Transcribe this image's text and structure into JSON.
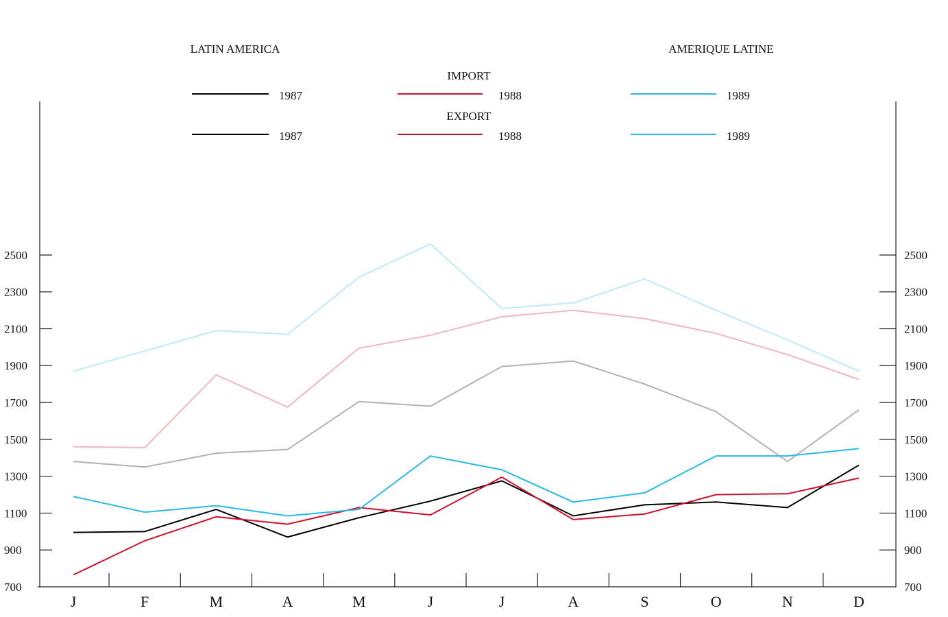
{
  "chart_data": {
    "type": "line",
    "title": "LATIN AMERICA",
    "title_right": "AMERIQUE LATINE",
    "categories": [
      "J",
      "F",
      "M",
      "A",
      "M",
      "J",
      "J",
      "A",
      "S",
      "O",
      "N",
      "D"
    ],
    "ylim": [
      700,
      2500
    ],
    "yticks": [
      700,
      900,
      1100,
      1300,
      1500,
      1700,
      1900,
      2100,
      2300,
      2500
    ],
    "y2lim": [
      700,
      2500
    ],
    "y2ticks": [
      700,
      900,
      1100,
      1300,
      1500,
      1700,
      1900,
      2100,
      2300,
      2500
    ],
    "series_groups": [
      {
        "name": "IMPORT",
        "opacity": 0.3,
        "series": [
          {
            "name": "1987",
            "color": "#000000",
            "values": [
              1380,
              1350,
              1425,
              1445,
              1705,
              1680,
              1895,
              1925,
              1800,
              1650,
              1380,
              1660
            ]
          },
          {
            "name": "1988",
            "color": "#d0102a",
            "values": [
              1460,
              1455,
              1850,
              1675,
              1995,
              2065,
              2165,
              2200,
              2155,
              2075,
              1960,
              1825
            ]
          },
          {
            "name": "1989",
            "color": "#2ab8e6",
            "values": [
              1870,
              1980,
              2090,
              2070,
              2380,
              2560,
              2210,
              2240,
              2370,
              2200,
              2040,
              1870
            ]
          }
        ]
      },
      {
        "name": "EXPORT",
        "opacity": 1,
        "series": [
          {
            "name": "1987",
            "color": "#000000",
            "values": [
              995,
              1000,
              1120,
              970,
              1075,
              1165,
              1275,
              1085,
              1145,
              1160,
              1130,
              1360
            ]
          },
          {
            "name": "1988",
            "color": "#d0102a",
            "values": [
              765,
              950,
              1080,
              1040,
              1130,
              1090,
              1295,
              1065,
              1095,
              1200,
              1205,
              1290
            ]
          },
          {
            "name": "1989",
            "color": "#2ab8e6",
            "values": [
              1190,
              1105,
              1140,
              1085,
              1120,
              1410,
              1335,
              1160,
              1210,
              1410,
              1410,
              1450
            ]
          }
        ]
      }
    ]
  }
}
